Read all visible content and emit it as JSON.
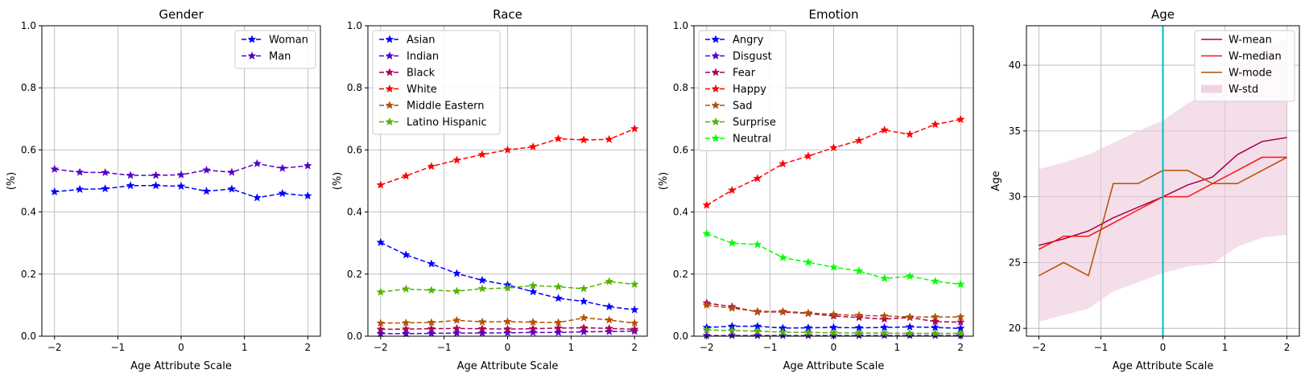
{
  "chart_data": [
    {
      "type": "line",
      "title": "Gender",
      "xlabel": "Age Attribute Scale",
      "ylabel": "(%)",
      "xlim": [
        -2.2,
        2.2
      ],
      "ylim": [
        0,
        1.0
      ],
      "xticks": [
        -2,
        -1,
        0,
        1,
        2
      ],
      "xtick_labels": [
        "−2",
        "−1",
        "0",
        "1",
        "2"
      ],
      "yticks": [
        0,
        0.2,
        0.4,
        0.6,
        0.8,
        1.0
      ],
      "ytick_labels": [
        "0.0",
        "0.2",
        "0.4",
        "0.6",
        "0.8",
        "1.0"
      ],
      "grid": true,
      "legend_position": "top-right",
      "x": [
        -2,
        -1.6,
        -1.2,
        -0.8,
        -0.4,
        0,
        0.4,
        0.8,
        1.2,
        1.6,
        2
      ],
      "series": [
        {
          "name": "Woman",
          "color": "#0000ff",
          "values": [
            0.465,
            0.473,
            0.475,
            0.485,
            0.485,
            0.483,
            0.467,
            0.474,
            0.446,
            0.46,
            0.452
          ]
        },
        {
          "name": "Man",
          "color": "#5500c8",
          "values": [
            0.538,
            0.528,
            0.527,
            0.518,
            0.518,
            0.52,
            0.535,
            0.528,
            0.556,
            0.541,
            0.549
          ]
        }
      ]
    },
    {
      "type": "line",
      "title": "Race",
      "xlabel": "Age Attribute Scale",
      "ylabel": "(%)",
      "xlim": [
        -2.2,
        2.2
      ],
      "ylim": [
        0,
        1.0
      ],
      "xticks": [
        -2,
        -1,
        0,
        1,
        2
      ],
      "xtick_labels": [
        "−2",
        "−1",
        "0",
        "1",
        "2"
      ],
      "yticks": [
        0,
        0.2,
        0.4,
        0.6,
        0.8,
        1.0
      ],
      "ytick_labels": [
        "0.0",
        "0.2",
        "0.4",
        "0.6",
        "0.8",
        "1.0"
      ],
      "grid": true,
      "legend_position": "top-left",
      "x": [
        -2,
        -1.6,
        -1.2,
        -0.8,
        -0.4,
        0,
        0.4,
        0.8,
        1.2,
        1.6,
        2
      ],
      "series": [
        {
          "name": "Asian",
          "color": "#0000ff",
          "values": [
            0.302,
            0.262,
            0.233,
            0.202,
            0.18,
            0.165,
            0.143,
            0.122,
            0.112,
            0.095,
            0.085
          ]
        },
        {
          "name": "Indian",
          "color": "#5500c8",
          "values": [
            0.008,
            0.008,
            0.009,
            0.01,
            0.01,
            0.011,
            0.012,
            0.012,
            0.014,
            0.015,
            0.016
          ]
        },
        {
          "name": "Black",
          "color": "#aa0055",
          "values": [
            0.022,
            0.023,
            0.024,
            0.025,
            0.024,
            0.023,
            0.024,
            0.026,
            0.027,
            0.025,
            0.022
          ]
        },
        {
          "name": "White",
          "color": "#ff0000",
          "values": [
            0.487,
            0.516,
            0.547,
            0.567,
            0.585,
            0.6,
            0.61,
            0.636,
            0.632,
            0.634,
            0.668
          ]
        },
        {
          "name": "Middle Eastern",
          "color": "#b45000",
          "values": [
            0.042,
            0.043,
            0.044,
            0.051,
            0.046,
            0.047,
            0.045,
            0.044,
            0.059,
            0.052,
            0.042
          ]
        },
        {
          "name": "Latino Hispanic",
          "color": "#50b400",
          "values": [
            0.142,
            0.152,
            0.148,
            0.145,
            0.153,
            0.155,
            0.163,
            0.159,
            0.153,
            0.176,
            0.167
          ]
        }
      ]
    },
    {
      "type": "line",
      "title": "Emotion",
      "xlabel": "Age Attribute Scale",
      "ylabel": "(%)",
      "xlim": [
        -2.2,
        2.2
      ],
      "ylim": [
        0,
        1.0
      ],
      "xticks": [
        -2,
        -1,
        0,
        1,
        2
      ],
      "xtick_labels": [
        "−2",
        "−1",
        "0",
        "1",
        "2"
      ],
      "yticks": [
        0,
        0.2,
        0.4,
        0.6,
        0.8,
        1.0
      ],
      "ytick_labels": [
        "0.0",
        "0.2",
        "0.4",
        "0.6",
        "0.8",
        "1.0"
      ],
      "grid": true,
      "legend_position": "top-left",
      "x": [
        -2,
        -1.6,
        -1.2,
        -0.8,
        -0.4,
        0,
        0.4,
        0.8,
        1.2,
        1.6,
        2
      ],
      "series": [
        {
          "name": "Angry",
          "color": "#0000ff",
          "values": [
            0.028,
            0.032,
            0.032,
            0.026,
            0.027,
            0.028,
            0.027,
            0.028,
            0.03,
            0.028,
            0.025
          ]
        },
        {
          "name": "Disgust",
          "color": "#5500c8",
          "values": [
            0.002,
            0.002,
            0.002,
            0.002,
            0.002,
            0.002,
            0.002,
            0.002,
            0.002,
            0.002,
            0.002
          ]
        },
        {
          "name": "Fear",
          "color": "#aa0055",
          "values": [
            0.107,
            0.095,
            0.078,
            0.078,
            0.073,
            0.065,
            0.06,
            0.055,
            0.06,
            0.047,
            0.045
          ]
        },
        {
          "name": "Happy",
          "color": "#ff0000",
          "values": [
            0.422,
            0.47,
            0.508,
            0.555,
            0.58,
            0.607,
            0.63,
            0.664,
            0.65,
            0.682,
            0.698
          ]
        },
        {
          "name": "Sad",
          "color": "#b45000",
          "values": [
            0.1,
            0.09,
            0.08,
            0.08,
            0.075,
            0.07,
            0.067,
            0.065,
            0.062,
            0.062,
            0.062
          ]
        },
        {
          "name": "Surprise",
          "color": "#50b400",
          "values": [
            0.02,
            0.018,
            0.016,
            0.013,
            0.012,
            0.011,
            0.01,
            0.01,
            0.009,
            0.009,
            0.009
          ]
        },
        {
          "name": "Neutral",
          "color": "#00ff00",
          "values": [
            0.33,
            0.3,
            0.295,
            0.253,
            0.238,
            0.222,
            0.21,
            0.186,
            0.193,
            0.177,
            0.167
          ]
        }
      ]
    },
    {
      "type": "line",
      "title": "Age",
      "xlabel": "Age Attribute Scale",
      "ylabel": "Age",
      "xlim": [
        -2.2,
        2.2
      ],
      "ylim": [
        19.4,
        43
      ],
      "xticks": [
        -2,
        -1,
        0,
        1,
        2
      ],
      "xtick_labels": [
        "−2",
        "−1",
        "0",
        "1",
        "2"
      ],
      "yticks": [
        20,
        25,
        30,
        35,
        40
      ],
      "ytick_labels": [
        "20",
        "25",
        "30",
        "35",
        "40"
      ],
      "grid": true,
      "legend_position": "top-right",
      "vline": {
        "x": 0,
        "color": "#00bebe"
      },
      "x": [
        -2,
        -1.6,
        -1.2,
        -0.8,
        -0.4,
        0,
        0.4,
        0.8,
        1.2,
        1.6,
        2
      ],
      "series": [
        {
          "name": "W-mean",
          "color": "#aa0044",
          "values": [
            26.3,
            26.8,
            27.4,
            28.4,
            29.2,
            30.0,
            30.9,
            31.5,
            33.2,
            34.2,
            34.5
          ]
        },
        {
          "name": "W-median",
          "color": "#ff1111",
          "values": [
            26.0,
            27.0,
            27.0,
            28.0,
            29.0,
            30.0,
            30.0,
            31.0,
            32.0,
            33.0,
            33.0
          ]
        },
        {
          "name": "W-mode",
          "color": "#b45000",
          "values": [
            24.0,
            25.0,
            24.0,
            31.0,
            31.0,
            32.0,
            32.0,
            31.0,
            31.0,
            32.0,
            33.0
          ]
        }
      ],
      "band": {
        "name": "W-std",
        "color": "#ebc8dc",
        "lower": [
          20.5,
          21.0,
          21.5,
          22.8,
          23.5,
          24.2,
          24.7,
          24.9,
          26.2,
          26.9,
          27.1
        ],
        "upper": [
          32.1,
          32.6,
          33.2,
          34.1,
          35.0,
          35.8,
          37.1,
          38.1,
          40.2,
          41.5,
          42.0
        ]
      }
    }
  ]
}
